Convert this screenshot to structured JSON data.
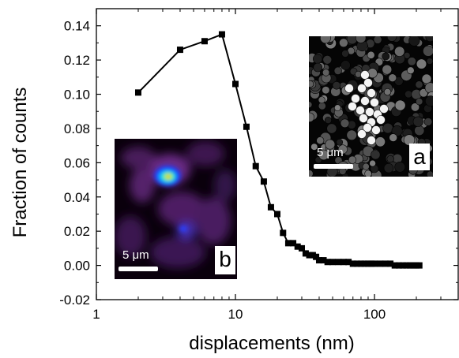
{
  "chart_data": {
    "type": "line",
    "xlabel": "displacements (nm)",
    "ylabel": "Fraction of counts",
    "xscale": "log",
    "xlim": [
      1,
      400
    ],
    "ylim": [
      -0.02,
      0.15
    ],
    "grid": false,
    "x_ticks": [
      "1",
      "10",
      "100"
    ],
    "y_ticks": [
      "-0.02",
      "0.00",
      "0.02",
      "0.04",
      "0.06",
      "0.08",
      "0.10",
      "0.12",
      "0.14"
    ],
    "marker": "square",
    "color": "#000000",
    "series": [
      {
        "x": [
          2,
          4,
          6,
          8,
          10,
          12,
          14,
          16,
          18,
          20,
          22,
          24,
          26,
          28,
          30,
          32,
          34,
          36,
          38,
          40,
          43,
          46,
          50,
          55,
          60,
          65,
          70,
          75,
          80,
          85,
          90,
          95,
          100,
          110,
          120,
          130,
          140,
          150,
          160,
          170,
          180,
          190,
          200,
          210
        ],
        "y": [
          0.101,
          0.126,
          0.131,
          0.135,
          0.106,
          0.081,
          0.058,
          0.049,
          0.034,
          0.03,
          0.019,
          0.013,
          0.013,
          0.011,
          0.01,
          0.007,
          0.006,
          0.006,
          0.005,
          0.003,
          0.003,
          0.002,
          0.002,
          0.002,
          0.002,
          0.002,
          0.001,
          0.001,
          0.001,
          0.001,
          0.001,
          0.001,
          0.001,
          0.001,
          0.001,
          0.001,
          0.0,
          0.0,
          0.0,
          0.0,
          0.0,
          0.0,
          0.0,
          0.0
        ]
      }
    ],
    "insets": [
      {
        "letter": "a",
        "scale_label": "5 μm",
        "style": "grayscale circles"
      },
      {
        "letter": "b",
        "scale_label": "5 μm",
        "style": "intensity heatmap"
      }
    ]
  }
}
